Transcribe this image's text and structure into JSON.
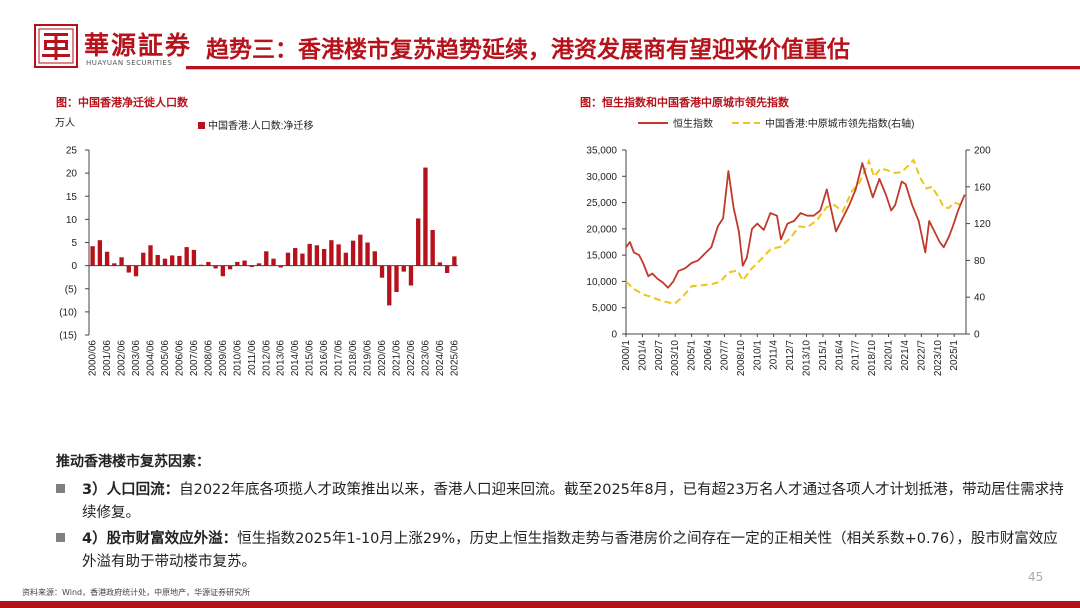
{
  "header": {
    "brand_cn": "華源証券",
    "brand_en": "HUAYUAN SECURITIES",
    "title": "趋势三：香港楼市复苏趋势延续，港资发展商有望迎来价值重估",
    "accent": "#b5121b"
  },
  "left_chart": {
    "caption": "图：中国香港净迁徙人口数"
  },
  "right_chart": {
    "caption": "图：恒生指数和中国香港中原城市领先指数"
  },
  "chart_data": [
    {
      "type": "bar",
      "unit_label": "万人",
      "legend": [
        "中国香港:人口数:净迁移"
      ],
      "legend_position": "top",
      "color": "#b5121b",
      "ylim": [
        -15,
        25
      ],
      "yticks": [
        "25",
        "20",
        "15",
        "10",
        "5",
        "0",
        "(5)",
        "(10)",
        "(15)"
      ],
      "xtick_labels": [
        "2000/06",
        "2001/06",
        "2002/06",
        "2003/06",
        "2004/06",
        "2005/06",
        "2006/06",
        "2007/06",
        "2008/06",
        "2009/06",
        "2010/06",
        "2011/06",
        "2012/06",
        "2013/06",
        "2014/06",
        "2015/06",
        "2016/06",
        "2017/06",
        "2018/06",
        "2019/06",
        "2020/06",
        "2021/06",
        "2022/06",
        "2023/06",
        "2024/06",
        "2025/06"
      ],
      "series": [
        {
          "name": "中国香港:人口数:净迁移",
          "values": [
            4.2,
            5.5,
            3.0,
            0.5,
            1.8,
            -1.5,
            -2.3,
            2.8,
            4.4,
            2.3,
            1.5,
            2.2,
            2.1,
            4.0,
            3.4,
            0.2,
            0.8,
            -0.6,
            -2.3,
            -0.8,
            0.8,
            1.1,
            -0.3,
            0.5,
            3.1,
            1.5,
            -0.4,
            2.8,
            3.8,
            2.6,
            4.7,
            4.4,
            3.6,
            5.5,
            4.6,
            2.8,
            5.4,
            6.7,
            5.0,
            3.1,
            -2.6,
            -8.6,
            -5.7,
            -1.3,
            -4.3,
            10.2,
            21.2,
            7.7,
            0.7,
            -1.6,
            2.0
          ]
        }
      ]
    },
    {
      "type": "line",
      "legend": [
        "恒生指数",
        "中国香港:中原城市领先指数(右轴)"
      ],
      "legend_position": "top",
      "xtick_labels": [
        "2000/1",
        "2001/4",
        "2002/7",
        "2003/10",
        "2005/1",
        "2006/4",
        "2007/7",
        "2008/10",
        "2010/1",
        "2011/4",
        "2012/7",
        "2013/10",
        "2015/1",
        "2016/4",
        "2017/7",
        "2018/10",
        "2020/1",
        "2021/4",
        "2022/7",
        "2023/10",
        "2025/1"
      ],
      "y_left_ticks": [
        "35,000",
        "30,000",
        "25,000",
        "20,000",
        "15,000",
        "10,000",
        "5,000",
        "0"
      ],
      "y_left_range": [
        0,
        35000
      ],
      "y_right_ticks": [
        "200",
        "160",
        "120",
        "80",
        "40",
        "0"
      ],
      "y_right_range": [
        0,
        200
      ],
      "series": [
        {
          "name": "恒生指数",
          "axis": "left",
          "color": "#c0392b",
          "x": [
            2000.0,
            2000.3,
            2000.6,
            2001.0,
            2001.3,
            2001.7,
            2002.0,
            2002.4,
            2002.8,
            2003.2,
            2003.6,
            2004.0,
            2004.5,
            2005.0,
            2005.5,
            2006.0,
            2006.5,
            2007.0,
            2007.4,
            2007.8,
            2008.2,
            2008.6,
            2008.9,
            2009.2,
            2009.6,
            2010.0,
            2010.5,
            2011.0,
            2011.5,
            2011.8,
            2012.3,
            2012.8,
            2013.3,
            2013.8,
            2014.3,
            2014.8,
            2015.3,
            2015.6,
            2016.0,
            2016.5,
            2017.0,
            2017.5,
            2018.0,
            2018.3,
            2018.8,
            2019.3,
            2019.8,
            2020.2,
            2020.5,
            2021.0,
            2021.3,
            2021.8,
            2022.3,
            2022.8,
            2023.1,
            2023.5,
            2023.9,
            2024.2,
            2024.6,
            2024.9,
            2025.3,
            2025.8
          ],
          "y": [
            16500,
            17500,
            15500,
            15000,
            13500,
            11000,
            11500,
            10500,
            9800,
            8800,
            10000,
            12000,
            12500,
            13500,
            14000,
            15300,
            16500,
            20500,
            22000,
            31000,
            24000,
            19500,
            13000,
            14500,
            20000,
            21000,
            19800,
            23000,
            22500,
            18000,
            21000,
            21500,
            23000,
            22500,
            22500,
            23500,
            27500,
            24000,
            19500,
            22000,
            24500,
            27500,
            32500,
            30000,
            26000,
            29500,
            26500,
            23500,
            24500,
            29000,
            28500,
            24500,
            21500,
            15500,
            21500,
            19500,
            17500,
            16500,
            18500,
            20500,
            23500,
            26500
          ]
        },
        {
          "name": "中国香港:中原城市领先指数(右轴)",
          "axis": "right",
          "color": "#f0c419",
          "style": "dashed",
          "x": [
            2000.0,
            2000.6,
            2001.3,
            2002.0,
            2002.7,
            2003.3,
            2003.7,
            2004.3,
            2005.0,
            2005.8,
            2006.5,
            2007.2,
            2007.8,
            2008.5,
            2008.9,
            2009.5,
            2010.2,
            2011.0,
            2011.8,
            2012.5,
            2013.2,
            2013.8,
            2014.5,
            2015.3,
            2015.9,
            2016.5,
            2017.2,
            2017.8,
            2018.5,
            2018.9,
            2019.4,
            2019.9,
            2020.5,
            2021.0,
            2021.5,
            2021.9,
            2022.4,
            2022.9,
            2023.3,
            2023.8,
            2024.2,
            2024.6,
            2025.0,
            2025.4,
            2025.8
          ],
          "y": [
            57,
            49,
            43,
            40,
            36,
            34,
            33,
            40,
            52,
            53,
            54,
            57,
            67,
            69,
            58,
            70,
            80,
            92,
            95,
            104,
            117,
            116,
            123,
            138,
            140,
            133,
            155,
            165,
            188,
            171,
            180,
            178,
            175,
            176,
            183,
            189,
            170,
            158,
            160,
            149,
            138,
            137,
            143,
            141,
            143
          ]
        }
      ]
    }
  ],
  "drivers": {
    "heading": "推动香港楼市复苏因素：",
    "items": [
      {
        "label": "3）人口回流：",
        "text": "自2022年底各项揽人才政策推出以来，香港人口迎来回流。截至2025年8月，已有超23万名人才通过各项人才计划抵港，带动居住需求持续修复。"
      },
      {
        "label": "4）股市财富效应外溢：",
        "text": "恒生指数2025年1-10月上涨29%，历史上恒生指数走势与香港房价之间存在一定的正相关性（相关系数+0.76），股市财富效应外溢有助于带动楼市复苏。"
      }
    ]
  },
  "footer": {
    "source": "资料来源：Wind，香港政府统计处，中原地产，华源证券研究所",
    "page_number": "45"
  }
}
